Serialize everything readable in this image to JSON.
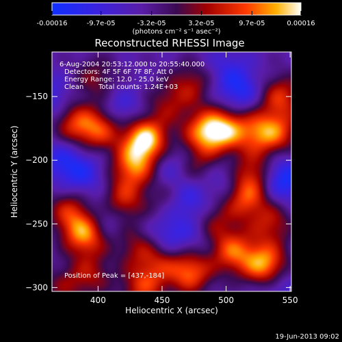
{
  "chart_data": {
    "type": "heatmap",
    "title": "Reconstructed RHESSI Image",
    "xlabel": "Heliocentric X (arcsec)",
    "ylabel": "Heliocentric Y (arcsec)",
    "xlim": [
      364,
      551
    ],
    "ylim": [
      -303,
      -115
    ],
    "x_ticks": [
      400,
      450,
      500,
      550
    ],
    "y_ticks": [
      -150,
      -200,
      -250,
      -300
    ],
    "colorbar": {
      "tick_labels": [
        "-0.00016",
        "-9.7e-05",
        "-3.2e-05",
        "3.2e-05",
        "9.7e-05",
        "0.00016"
      ],
      "tick_values": [
        -0.00016,
        -9.7e-05,
        -3.2e-05,
        3.2e-05,
        9.7e-05,
        0.00016
      ],
      "range": [
        -0.00016,
        0.00016
      ],
      "unit_label": "(photons cm⁻² s⁻¹ asec⁻²)"
    },
    "annotations": {
      "time_range": "6-Aug-2004 20:53:12.000 to 20:55:40.000",
      "detectors": "Detectors: 4F 5F 6F 7F 8F, Att 0",
      "energy_range": "Energy Range: 12.0 - 25.0 keV",
      "algorithm": "Clean",
      "total_counts": "Total counts: 1.24E+03",
      "peak_position": "Position of Peak = [437,-184]"
    },
    "peak": [
      437,
      -184
    ],
    "footer_timestamp": "19-Jun-2013 09:02",
    "blobs": [
      {
        "x": 437,
        "y": -184,
        "v": 1.0
      },
      {
        "x": 428,
        "y": -205,
        "v": 0.7
      },
      {
        "x": 419,
        "y": -232,
        "v": 0.55
      },
      {
        "x": 402,
        "y": -175,
        "v": 0.6
      },
      {
        "x": 382,
        "y": -172,
        "v": 0.55
      },
      {
        "x": 455,
        "y": -156,
        "v": 0.35
      },
      {
        "x": 484,
        "y": -178,
        "v": 0.75
      },
      {
        "x": 500,
        "y": -176,
        "v": 0.7
      },
      {
        "x": 525,
        "y": -178,
        "v": 0.55
      },
      {
        "x": 473,
        "y": -140,
        "v": 0.4
      },
      {
        "x": 543,
        "y": -150,
        "v": 0.55
      },
      {
        "x": 541,
        "y": -178,
        "v": 0.5
      },
      {
        "x": 520,
        "y": -210,
        "v": 0.5
      },
      {
        "x": 515,
        "y": -230,
        "v": 0.6
      },
      {
        "x": 535,
        "y": -250,
        "v": 0.45
      },
      {
        "x": 490,
        "y": -250,
        "v": 0.4
      },
      {
        "x": 505,
        "y": -272,
        "v": 0.65
      },
      {
        "x": 530,
        "y": -282,
        "v": 0.85
      },
      {
        "x": 472,
        "y": -288,
        "v": 0.7
      },
      {
        "x": 448,
        "y": -280,
        "v": 0.4
      },
      {
        "x": 430,
        "y": -268,
        "v": 0.35
      },
      {
        "x": 390,
        "y": -258,
        "v": 0.8
      },
      {
        "x": 378,
        "y": -240,
        "v": 0.5
      },
      {
        "x": 394,
        "y": -290,
        "v": 0.4
      },
      {
        "x": 435,
        "y": -300,
        "v": 0.55
      },
      {
        "x": 478,
        "y": -205,
        "v": 0.3
      },
      {
        "x": 455,
        "y": -230,
        "v": 0.25
      },
      {
        "x": 398,
        "y": -136,
        "v": 0.35
      },
      {
        "x": 372,
        "y": -300,
        "v": 0.3
      },
      {
        "x": 388,
        "y": -212,
        "v": -0.35
      },
      {
        "x": 418,
        "y": -160,
        "v": -0.3
      },
      {
        "x": 455,
        "y": -260,
        "v": -0.35
      },
      {
        "x": 405,
        "y": -245,
        "v": -0.3
      },
      {
        "x": 510,
        "y": -145,
        "v": -0.45
      },
      {
        "x": 545,
        "y": -215,
        "v": -0.55
      },
      {
        "x": 470,
        "y": -232,
        "v": -0.4
      },
      {
        "x": 540,
        "y": -300,
        "v": -0.25
      },
      {
        "x": 372,
        "y": -200,
        "v": -0.35
      },
      {
        "x": 455,
        "y": -205,
        "v": -0.25
      },
      {
        "x": 500,
        "y": -215,
        "v": -0.25
      },
      {
        "x": 480,
        "y": -260,
        "v": -0.2
      },
      {
        "x": 362,
        "y": -150,
        "v": -0.3
      },
      {
        "x": 500,
        "y": -125,
        "v": -0.2
      }
    ]
  }
}
